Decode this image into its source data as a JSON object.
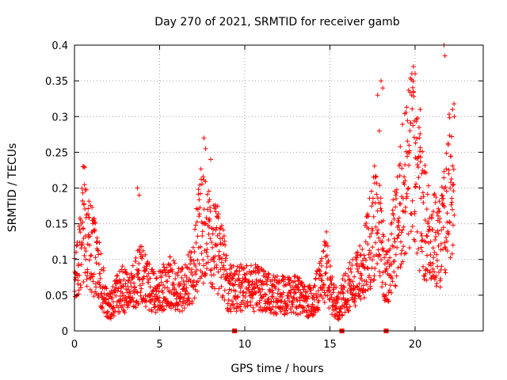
{
  "chart_data": {
    "type": "scatter",
    "title": "Day 270 of 2021, SRMTID for receiver gamb",
    "xlabel": "GPS time / hours",
    "ylabel": "SRMTID / TECUs",
    "xlim": [
      0,
      24
    ],
    "ylim": [
      0,
      0.4
    ],
    "xticks": [
      0,
      5,
      10,
      15,
      20
    ],
    "yticks": [
      0,
      0.05,
      0.1,
      0.15,
      0.2,
      0.25,
      0.3,
      0.35,
      0.4
    ],
    "ytick_labels": [
      "0",
      "0.05",
      "0.1",
      "0.15",
      "0.2",
      "0.25",
      "0.3",
      "0.35",
      "0.4"
    ],
    "xtick_labels": [
      "0",
      "5",
      "10",
      "15",
      "20"
    ],
    "grid": true,
    "marker": "+",
    "color": "#ff0000",
    "zero_markers_x": [
      9.4,
      15.7,
      18.3
    ],
    "trend": [
      [
        0.0,
        0.08
      ],
      [
        0.3,
        0.1
      ],
      [
        0.5,
        0.14
      ],
      [
        0.8,
        0.13
      ],
      [
        1.2,
        0.1
      ],
      [
        1.6,
        0.07
      ],
      [
        2.0,
        0.03
      ],
      [
        2.4,
        0.05
      ],
      [
        2.8,
        0.06
      ],
      [
        3.2,
        0.05
      ],
      [
        3.6,
        0.07
      ],
      [
        4.0,
        0.08
      ],
      [
        4.4,
        0.06
      ],
      [
        4.8,
        0.05
      ],
      [
        5.2,
        0.06
      ],
      [
        5.6,
        0.07
      ],
      [
        6.0,
        0.06
      ],
      [
        6.5,
        0.06
      ],
      [
        7.0,
        0.09
      ],
      [
        7.4,
        0.15
      ],
      [
        7.8,
        0.13
      ],
      [
        8.2,
        0.12
      ],
      [
        8.6,
        0.11
      ],
      [
        9.0,
        0.06
      ],
      [
        9.5,
        0.06
      ],
      [
        10.0,
        0.06
      ],
      [
        10.5,
        0.06
      ],
      [
        11.0,
        0.06
      ],
      [
        11.5,
        0.05
      ],
      [
        12.0,
        0.05
      ],
      [
        12.5,
        0.05
      ],
      [
        13.0,
        0.05
      ],
      [
        13.5,
        0.045
      ],
      [
        14.0,
        0.04
      ],
      [
        14.5,
        0.07
      ],
      [
        14.8,
        0.09
      ],
      [
        15.1,
        0.05
      ],
      [
        15.5,
        0.035
      ],
      [
        16.0,
        0.06
      ],
      [
        16.5,
        0.07
      ],
      [
        17.0,
        0.09
      ],
      [
        17.3,
        0.12
      ],
      [
        17.6,
        0.15
      ],
      [
        18.0,
        0.14
      ],
      [
        18.3,
        0.07
      ],
      [
        18.7,
        0.12
      ],
      [
        19.0,
        0.15
      ],
      [
        19.4,
        0.21
      ],
      [
        19.8,
        0.24
      ],
      [
        20.2,
        0.19
      ],
      [
        20.6,
        0.15
      ],
      [
        21.0,
        0.13
      ],
      [
        21.4,
        0.12
      ],
      [
        21.8,
        0.16
      ],
      [
        22.2,
        0.24
      ]
    ],
    "spikes": [
      [
        0.5,
        0.23
      ],
      [
        0.55,
        0.23
      ],
      [
        0.6,
        0.229
      ],
      [
        3.7,
        0.2
      ],
      [
        3.8,
        0.19
      ],
      [
        7.6,
        0.27
      ],
      [
        7.7,
        0.255
      ],
      [
        8.0,
        0.24
      ],
      [
        17.8,
        0.33
      ],
      [
        18.0,
        0.35
      ],
      [
        18.1,
        0.34
      ],
      [
        19.9,
        0.37
      ],
      [
        20.0,
        0.36
      ],
      [
        19.8,
        0.33
      ],
      [
        21.7,
        0.4
      ],
      [
        21.75,
        0.385
      ],
      [
        22.2,
        0.31
      ],
      [
        22.3,
        0.3
      ],
      [
        20.3,
        0.31
      ],
      [
        17.9,
        0.28
      ]
    ]
  }
}
